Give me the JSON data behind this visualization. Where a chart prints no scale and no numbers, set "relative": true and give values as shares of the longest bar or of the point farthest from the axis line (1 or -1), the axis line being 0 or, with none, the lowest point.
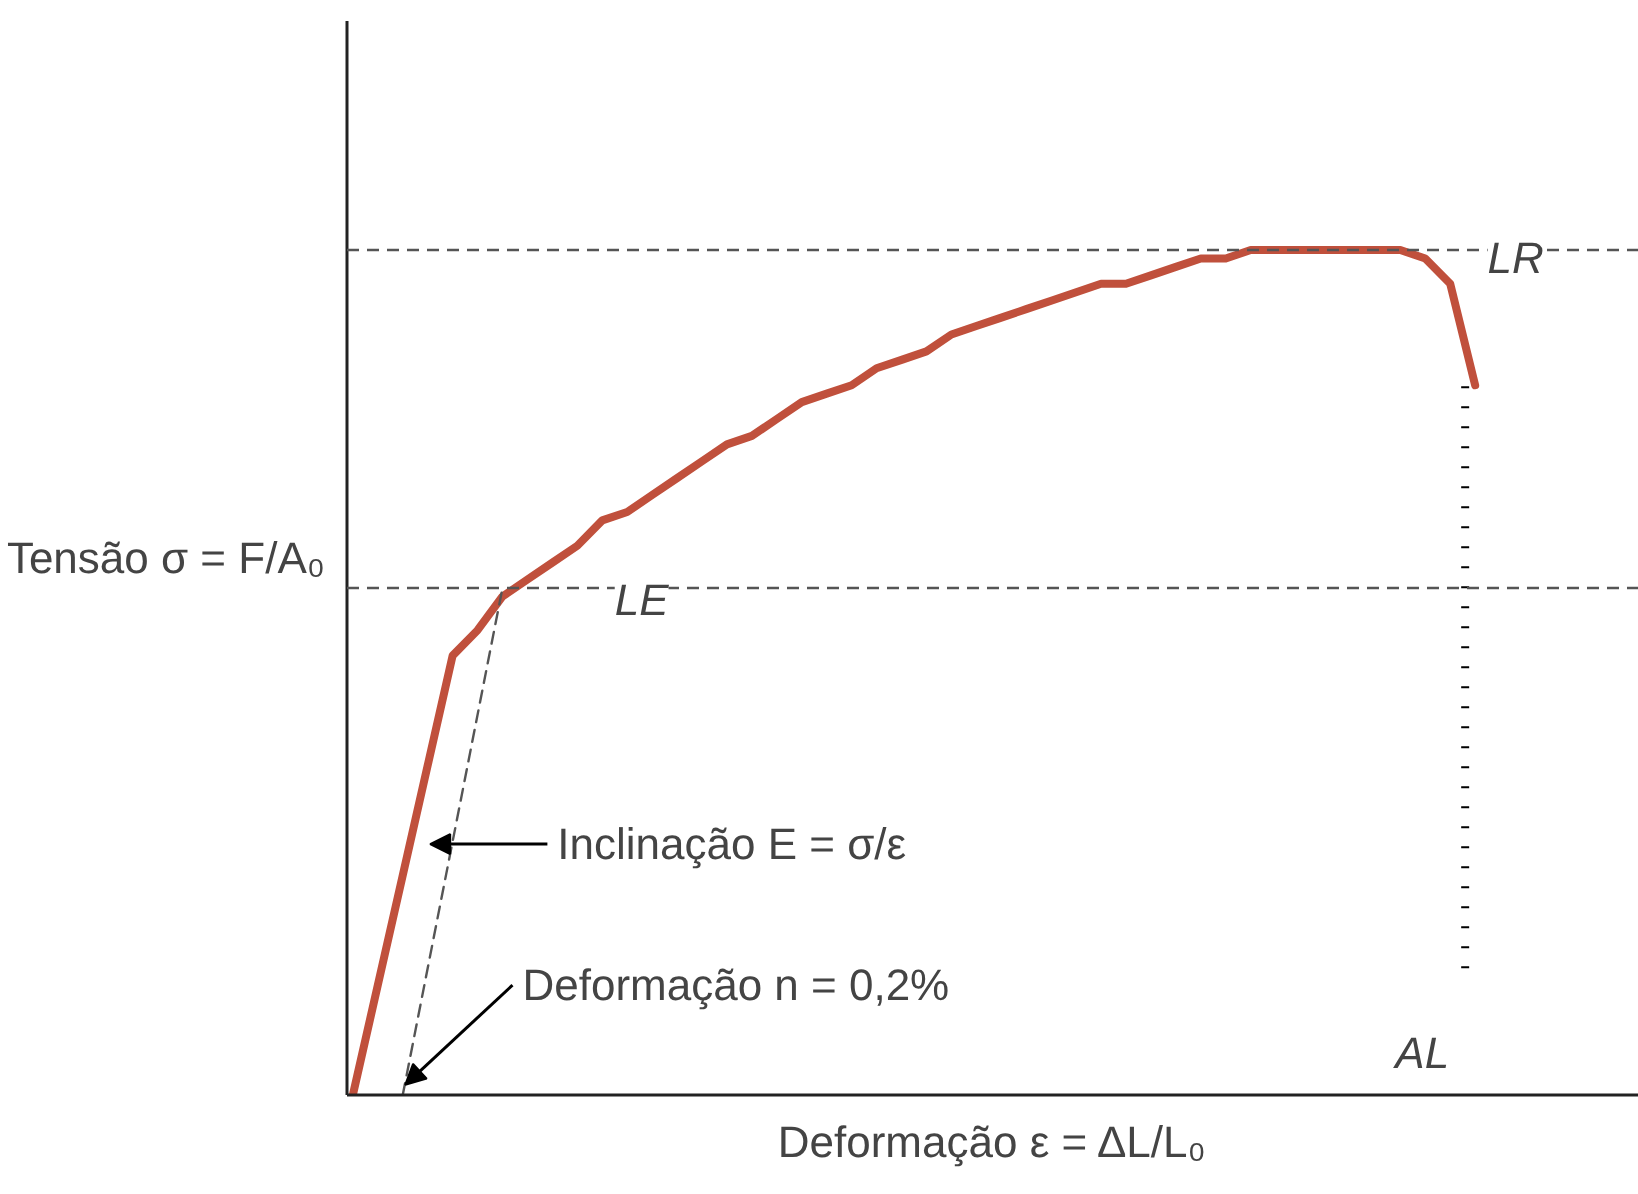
{
  "chart_data": {
    "type": "line",
    "relative": true,
    "xlabel": "Deformação ε = ΔL/L₀",
    "ylabel": "Tensão σ = F/A₀",
    "categories": [
      null,
      null,
      null,
      null,
      null,
      null,
      null,
      null,
      null,
      null,
      null,
      null,
      null,
      null,
      null,
      null,
      null,
      null,
      null,
      null,
      null,
      null,
      null,
      null,
      null,
      null,
      null,
      null,
      null,
      null,
      null,
      null,
      null,
      null,
      null,
      null,
      null,
      null,
      null,
      null,
      null,
      null,
      null,
      null,
      null,
      null
    ],
    "series": [
      {
        "color": "#c0503c",
        "values": [
          0,
          0.13,
          0.26,
          0.39,
          0.52,
          0.55,
          0.59,
          0.61,
          0.63,
          0.65,
          0.68,
          0.69,
          0.71,
          0.73,
          0.75,
          0.77,
          0.78,
          0.8,
          0.82,
          0.83,
          0.84,
          0.86,
          0.87,
          0.88,
          0.9,
          0.91,
          0.92,
          0.93,
          0.94,
          0.95,
          0.96,
          0.96,
          0.97,
          0.98,
          0.99,
          0.99,
          1,
          1,
          1,
          1,
          1,
          1,
          1,
          0.99,
          0.96,
          0.84
        ]
      },
      {
        "color": "#555555",
        "line_style": "dashed",
        "values": [
          null,
          null,
          0,
          null,
          null,
          null,
          0.6,
          null,
          null,
          null,
          null,
          null,
          null,
          null,
          null,
          null,
          null,
          null,
          null,
          null,
          null,
          null,
          null,
          null,
          null,
          null,
          null,
          null,
          null,
          null,
          null,
          null,
          null,
          null,
          null,
          null,
          null,
          null,
          null,
          null,
          null,
          null,
          null,
          null,
          null,
          null
        ]
      }
    ],
    "ref_lines": [
      {
        "axis": "y",
        "value": 1,
        "label": "LR",
        "line_style": "dashed",
        "color": "#555555"
      },
      {
        "axis": "y",
        "value": 0.6,
        "label": "LE",
        "line_style": "dashed",
        "color": "#555555"
      }
    ],
    "annotations": [
      "Inclinação E = σ/ε",
      "Deformação n = 0,2%",
      "AL"
    ],
    "grid": false
  }
}
